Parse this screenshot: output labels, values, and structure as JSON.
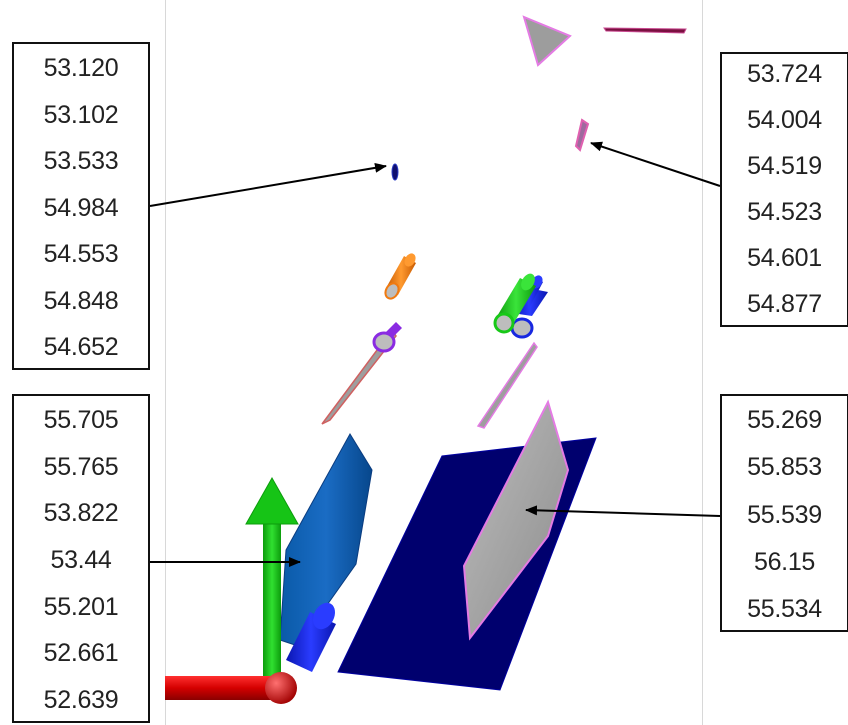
{
  "callouts": {
    "top_left": {
      "values": [
        "53.120",
        "53.102",
        "53.533",
        "54.984",
        "54.553",
        "54.848",
        "54.652"
      ]
    },
    "top_right": {
      "values": [
        "53.724",
        "54.004",
        "54.519",
        "54.523",
        "54.601",
        "54.877"
      ]
    },
    "bottom_left": {
      "values": [
        "55.705",
        "55.765",
        "53.822",
        "53.44",
        "55.201",
        "52.661",
        "52.639"
      ]
    },
    "bottom_right": {
      "values": [
        "55.269",
        "55.853",
        "55.539",
        "56.15",
        "55.534"
      ]
    }
  },
  "colors": {
    "axis_x": "#d40000",
    "axis_y": "#11b811",
    "axis_z": "#0b1ff0",
    "navy_plate": "#00006e",
    "blue_plate": "#0a5cb4",
    "gray_plate": "#999999",
    "plate_outline": "#e47be4",
    "orange_cylinder": "#f07a10",
    "green_cylinder": "#18c818",
    "blue_cylinder": "#1828e0",
    "purple_ring": "#8a2be2",
    "arrow": "#000000"
  }
}
